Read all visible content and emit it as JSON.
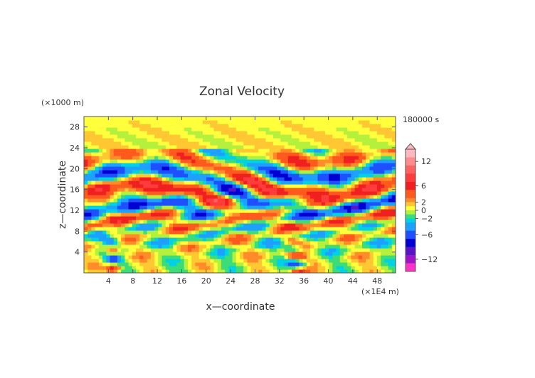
{
  "chart_data": {
    "type": "heatmap",
    "title": "Zonal Velocity",
    "xlabel": "x—coordinate",
    "ylabel": "z—coordinate",
    "x_unit": "(×1E4 m)",
    "y_unit": "(×1000 m)",
    "time_label": "180000 s",
    "xlim": [
      0,
      51
    ],
    "ylim": [
      0,
      30
    ],
    "x_ticks": [
      4,
      8,
      12,
      16,
      20,
      24,
      28,
      32,
      36,
      40,
      44,
      48
    ],
    "y_ticks": [
      4,
      8,
      12,
      16,
      20,
      24,
      28
    ],
    "grid": false,
    "colorbar": {
      "ticks": [
        12,
        6,
        2,
        0,
        -2,
        -6,
        -12
      ],
      "range": [
        -15,
        15
      ],
      "levels": [
        {
          "min": 13,
          "max": 15,
          "color": "#ffb8c0"
        },
        {
          "min": 11,
          "max": 13,
          "color": "#ff8c8c"
        },
        {
          "min": 9,
          "max": 11,
          "color": "#ff6060"
        },
        {
          "min": 7,
          "max": 9,
          "color": "#ff3c3c"
        },
        {
          "min": 5,
          "max": 7,
          "color": "#f02020"
        },
        {
          "min": 3,
          "max": 5,
          "color": "#ff5a1e"
        },
        {
          "min": 2,
          "max": 3,
          "color": "#ff8c28"
        },
        {
          "min": 1,
          "max": 2,
          "color": "#ffc832"
        },
        {
          "min": 0,
          "max": 1,
          "color": "#ffff3c"
        },
        {
          "min": -1,
          "max": 0,
          "color": "#b4f03c"
        },
        {
          "min": -2,
          "max": -1,
          "color": "#3cdc78"
        },
        {
          "min": -3,
          "max": -2,
          "color": "#00d2e6"
        },
        {
          "min": -5,
          "max": -3,
          "color": "#1ea0ff"
        },
        {
          "min": -7,
          "max": -5,
          "color": "#1e50ff"
        },
        {
          "min": -9,
          "max": -7,
          "color": "#0000d2"
        },
        {
          "min": -11,
          "max": -9,
          "color": "#5a14c8"
        },
        {
          "min": -13,
          "max": -11,
          "color": "#a014c8"
        },
        {
          "min": -15,
          "max": -13,
          "color": "#ff32c8"
        }
      ]
    }
  }
}
